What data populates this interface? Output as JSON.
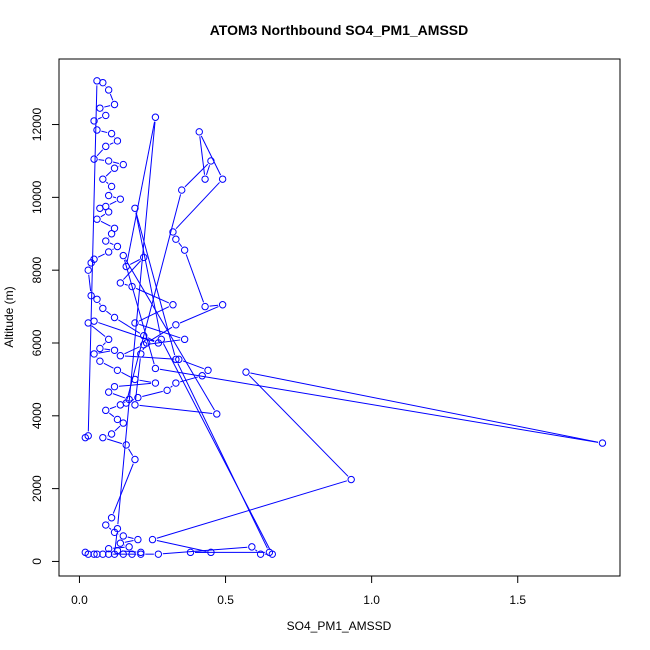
{
  "colors": {
    "series": "#0000ff",
    "axis": "#000000",
    "background": "#ffffff"
  },
  "chart_data": {
    "type": "scatter",
    "connected": true,
    "marker": "open-circle",
    "title": "ATOM3 Northbound SO4_PM1_AMSSD",
    "xlabel": "SO4_PM1_AMSSD",
    "ylabel": "Altitude (m)",
    "xlim": [
      -0.07,
      1.85
    ],
    "ylim": [
      -400,
      13800
    ],
    "xticks": [
      0.0,
      0.5,
      1.0,
      1.5
    ],
    "xtick_labels": [
      "0.0",
      "0.5",
      "1.0",
      "1.5"
    ],
    "yticks": [
      0,
      2000,
      4000,
      6000,
      8000,
      10000,
      12000
    ],
    "ytick_labels": [
      "0",
      "2000",
      "4000",
      "6000",
      "8000",
      "10000",
      "12000"
    ],
    "grid": false,
    "legend": "none",
    "series": [
      {
        "x": [
          0.02,
          0.03,
          0.06,
          0.08,
          0.1,
          0.12,
          0.07,
          0.09,
          0.05,
          0.06,
          0.11,
          0.13,
          0.09,
          0.05,
          0.1,
          0.15,
          0.12,
          0.08,
          0.11,
          0.1,
          0.14,
          0.09,
          0.07,
          0.1,
          0.06,
          0.12,
          0.11,
          0.09,
          0.13,
          0.1,
          0.05,
          0.04,
          0.03,
          0.04,
          0.06,
          0.08,
          0.12,
          0.22,
          0.27,
          0.05,
          0.03,
          0.1,
          0.07,
          0.12,
          0.05,
          0.07,
          0.13,
          0.19,
          0.26,
          0.12,
          0.1,
          0.17,
          0.14,
          0.09,
          0.13,
          0.15,
          0.11,
          0.08,
          0.16,
          0.19,
          0.11,
          0.09,
          0.12,
          0.15,
          0.2,
          0.14,
          0.17,
          0.1,
          0.13,
          0.21,
          0.18,
          0.12,
          0.13,
          0.26,
          0.16,
          0.22,
          0.14,
          0.18,
          0.32,
          0.19,
          0.36,
          0.22,
          0.14,
          0.34,
          0.44,
          0.42,
          0.33,
          0.3,
          0.2,
          0.16,
          0.35,
          0.45,
          0.43,
          0.41,
          0.49,
          0.32,
          0.33,
          0.36,
          0.43,
          0.49,
          0.33,
          0.23,
          0.21,
          0.19,
          0.47,
          0.15,
          0.26,
          1.79,
          0.57,
          0.93,
          0.25,
          0.45,
          0.38,
          0.65,
          0.33,
          0.19,
          0.28,
          0.66,
          0.62,
          0.59,
          0.27,
          0.21,
          0.15,
          0.1,
          0.08,
          0.06,
          0.05,
          0.03,
          0.02
        ],
        "y": [
          3400,
          3450,
          13200,
          13150,
          12950,
          12550,
          12450,
          12250,
          12100,
          11850,
          11750,
          11550,
          11400,
          11050,
          11000,
          10900,
          10800,
          10500,
          10300,
          10050,
          9950,
          9750,
          9700,
          9600,
          9400,
          9150,
          9000,
          8800,
          8650,
          8500,
          8300,
          8200,
          8000,
          7300,
          7200,
          6950,
          6700,
          6200,
          6000,
          6600,
          6550,
          6100,
          5850,
          5800,
          5700,
          5500,
          5250,
          5000,
          4900,
          4800,
          4650,
          4450,
          4300,
          4150,
          3900,
          3800,
          3500,
          3400,
          3200,
          2800,
          1200,
          1000,
          800,
          700,
          600,
          500,
          400,
          350,
          300,
          250,
          200,
          200,
          900,
          12200,
          8100,
          8350,
          7650,
          7550,
          7050,
          6550,
          6100,
          5950,
          5650,
          5550,
          5250,
          5100,
          4900,
          4700,
          4500,
          4350,
          10200,
          11000,
          10500,
          11800,
          10500,
          9050,
          8850,
          8550,
          7000,
          7050,
          6500,
          6000,
          5700,
          4300,
          4050,
          8400,
          5300,
          3250,
          5200,
          2250,
          600,
          250,
          250,
          250,
          5550,
          9700,
          6100,
          200,
          200,
          400,
          200,
          200,
          200,
          200,
          200,
          200,
          200,
          200,
          250
        ]
      }
    ]
  }
}
